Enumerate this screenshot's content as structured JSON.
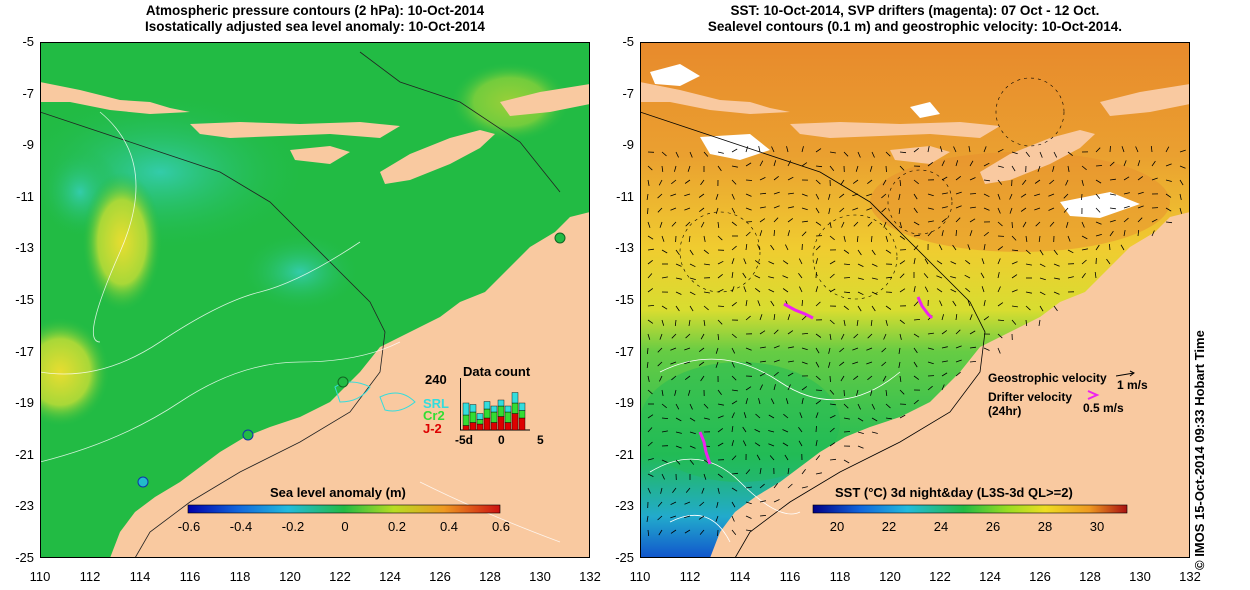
{
  "left_panel": {
    "title_line1": "Atmospheric pressure contours (2 hPa): 10-Oct-2014",
    "title_line2": "Isostatically adjusted sea level anomaly: 10-Oct-2014",
    "colorbar_label": "Sea level anomaly (m)",
    "colorbar_ticks": [
      "-0.6",
      "-0.4",
      "-0.2",
      "0",
      "0.2",
      "0.4",
      "0.6"
    ],
    "inset": {
      "title": "Data count",
      "ymax_label": "240",
      "x_labels": [
        "-5d",
        "0",
        "5"
      ],
      "missions": [
        "SRL",
        "Cr2",
        "J-2"
      ],
      "mission_colors": [
        "#33dddd",
        "#33dd33",
        "#dd0000"
      ]
    }
  },
  "right_panel": {
    "title_line1": "SST: 10-Oct-2014, SVP drifters (magenta): 07 Oct - 12 Oct.",
    "title_line2": "Sealevel contours (0.1 m) and geostrophic velocity: 10-Oct-2014.",
    "colorbar_label": "SST (°C) 3d night&day (L3S-3d QL>=2)",
    "colorbar_ticks": [
      "20",
      "22",
      "24",
      "26",
      "28",
      "30"
    ],
    "legend": {
      "geostrophic": "Geostrophic velocity",
      "geostrophic_scale": "1 m/s",
      "drifter_line1": "Drifter velocity",
      "drifter_line2": "(24hr)",
      "drifter_scale": "0.5 m/s"
    }
  },
  "axes": {
    "y_ticks": [
      "-5",
      "-7",
      "-9",
      "-11",
      "-13",
      "-15",
      "-17",
      "-19",
      "-21",
      "-23",
      "-25"
    ],
    "x_ticks": [
      "110",
      "112",
      "114",
      "116",
      "118",
      "120",
      "122",
      "124",
      "126",
      "128",
      "130",
      "132"
    ]
  },
  "footer": {
    "vertical_label": "© IMOS 15-Oct-2014 09:33 Hobart Time"
  },
  "colors": {
    "land": "#f9c9a0",
    "sea_green": "#22bb44",
    "sst_orange": "#e89030",
    "drifter": "#ee22ee"
  }
}
